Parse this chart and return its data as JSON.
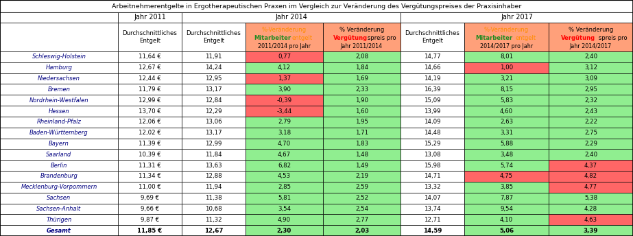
{
  "title": "Arbeitnehmerentgelte in Ergotherapeutischen Praxen im Vergleich zur Veränderung des Vergütungspreises der Praxisinhaber",
  "regions": [
    "Schleswig-Holstein",
    "Hamburg",
    "Niedersachsen",
    "Bremen",
    "Nordrhein-Westfalen",
    "Hessen",
    "Rheinland-Pfalz",
    "Baden-Württemberg",
    "Bayern",
    "Saarland",
    "Berlin",
    "Brandenburg",
    "Mecklenburg-Vorpommern",
    "Sachsen",
    "Sachsen-Anhalt",
    "Thürigen",
    "Gesamt"
  ],
  "data": [
    [
      "11,64 €",
      "11,91",
      "0,77",
      "2,08",
      "14,77",
      "8,01",
      "2,40"
    ],
    [
      "12,67 €",
      "14,24",
      "4,12",
      "1,84",
      "14,66",
      "1,00",
      "3,12"
    ],
    [
      "12,44 €",
      "12,95",
      "1,37",
      "1,69",
      "14,19",
      "3,21",
      "3,09"
    ],
    [
      "11,79 €",
      "13,17",
      "3,90",
      "2,33",
      "16,39",
      "8,15",
      "2,95"
    ],
    [
      "12,99 €",
      "12,84",
      "-0,39",
      "1,90",
      "15,09",
      "5,83",
      "2,32"
    ],
    [
      "13,70 €",
      "12,29",
      "-3,44",
      "1,60",
      "13,99",
      "4,60",
      "2,43"
    ],
    [
      "12,06 €",
      "13,06",
      "2,79",
      "1,95",
      "14,09",
      "2,63",
      "2,22"
    ],
    [
      "12,02 €",
      "13,17",
      "3,18",
      "1,71",
      "14,48",
      "3,31",
      "2,75"
    ],
    [
      "11,39 €",
      "12,99",
      "4,70",
      "1,83",
      "15,29",
      "5,88",
      "2,29"
    ],
    [
      "10,39 €",
      "11,84",
      "4,67",
      "1,48",
      "13,08",
      "3,48",
      "2,40"
    ],
    [
      "11,31 €",
      "13,63",
      "6,82",
      "1,49",
      "15,98",
      "5,74",
      "4,37"
    ],
    [
      "11,34 €",
      "12,88",
      "4,53",
      "2,19",
      "14,71",
      "4,75",
      "4,82"
    ],
    [
      "11,00 €",
      "11,94",
      "2,85",
      "2,59",
      "13,32",
      "3,85",
      "4,77"
    ],
    [
      "9,69 €",
      "11,38",
      "5,81",
      "2,52",
      "14,07",
      "7,87",
      "5,38"
    ],
    [
      "9,66 €",
      "10,68",
      "3,54",
      "2,54",
      "13,74",
      "9,54",
      "4,28"
    ],
    [
      "9,87 €",
      "11,32",
      "4,90",
      "2,77",
      "12,71",
      "4,10",
      "4,63"
    ],
    [
      "11,85 €",
      "12,67",
      "2,30",
      "2,03",
      "14,59",
      "5,06",
      "3,39"
    ]
  ],
  "col3_colors": [
    "#ff6666",
    "#90ee90",
    "#ff6666",
    "#90ee90",
    "#ff6666",
    "#ff6666",
    "#90ee90",
    "#90ee90",
    "#90ee90",
    "#90ee90",
    "#90ee90",
    "#90ee90",
    "#90ee90",
    "#90ee90",
    "#90ee90",
    "#90ee90",
    "#90ee90"
  ],
  "col4_colors": [
    "#90ee90",
    "#90ee90",
    "#90ee90",
    "#90ee90",
    "#90ee90",
    "#90ee90",
    "#90ee90",
    "#90ee90",
    "#90ee90",
    "#90ee90",
    "#90ee90",
    "#90ee90",
    "#90ee90",
    "#90ee90",
    "#90ee90",
    "#90ee90",
    "#90ee90"
  ],
  "col6_colors": [
    "#90ee90",
    "#ff6666",
    "#90ee90",
    "#90ee90",
    "#90ee90",
    "#90ee90",
    "#90ee90",
    "#90ee90",
    "#90ee90",
    "#90ee90",
    "#90ee90",
    "#ff6666",
    "#90ee90",
    "#90ee90",
    "#90ee90",
    "#90ee90",
    "#90ee90"
  ],
  "col7_colors": [
    "#90ee90",
    "#90ee90",
    "#90ee90",
    "#90ee90",
    "#90ee90",
    "#90ee90",
    "#90ee90",
    "#90ee90",
    "#90ee90",
    "#90ee90",
    "#ff6666",
    "#ff6666",
    "#ff6666",
    "#90ee90",
    "#90ee90",
    "#ff6666",
    "#90ee90"
  ]
}
